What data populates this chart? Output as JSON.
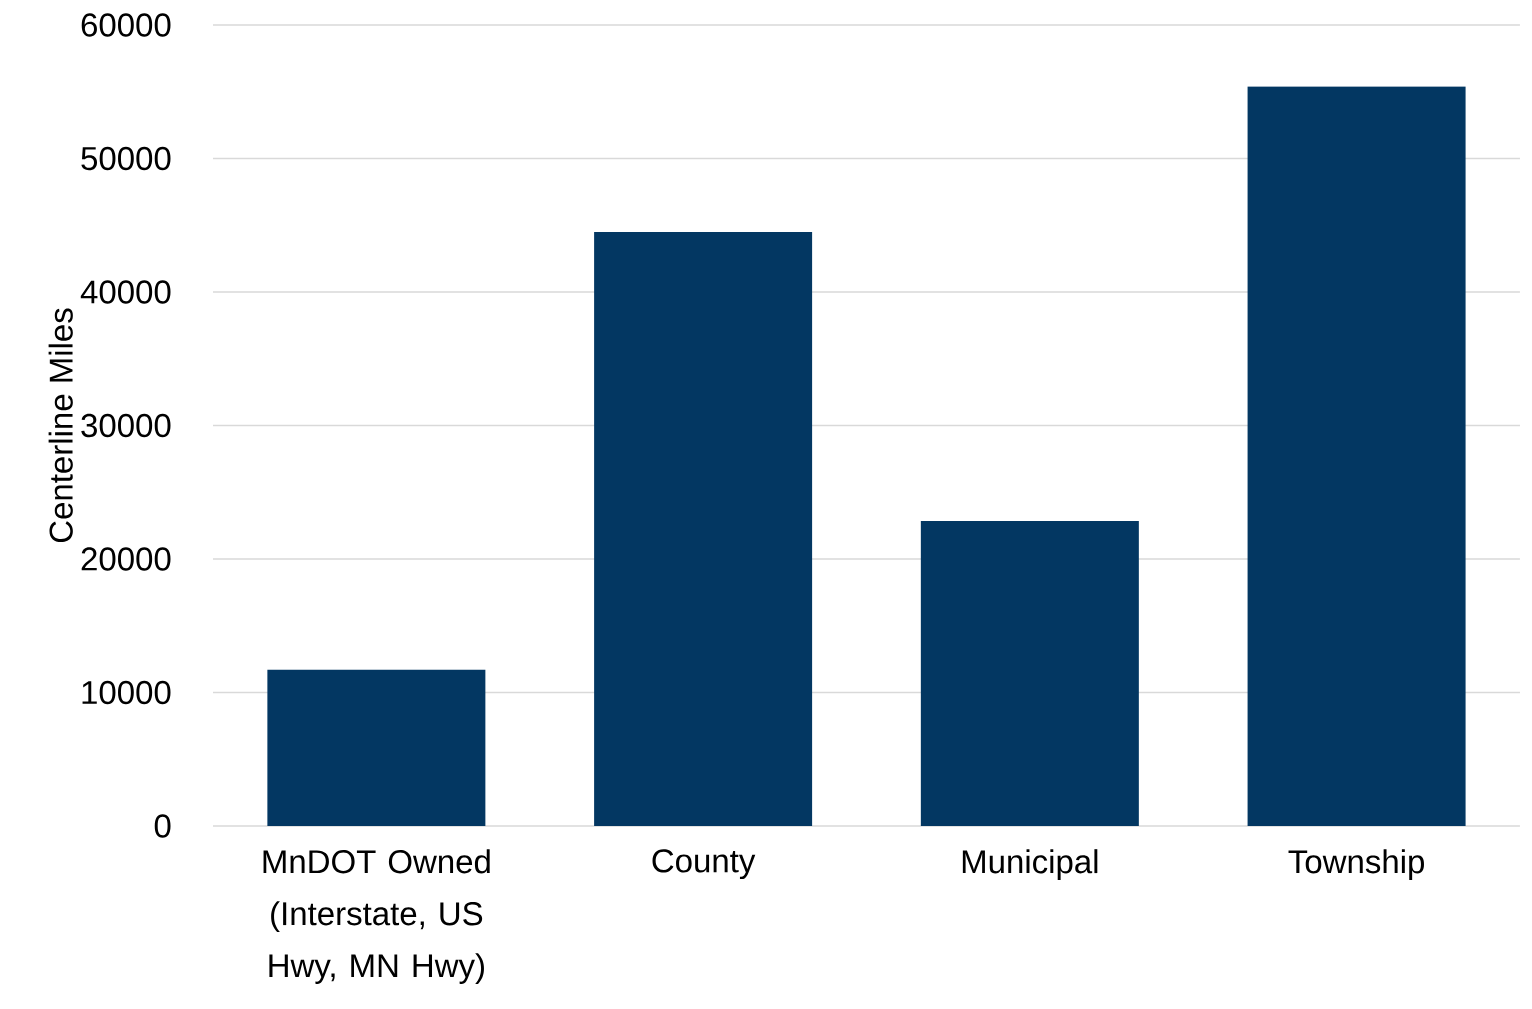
{
  "chart_data": {
    "type": "bar",
    "ylabel": "Centerline Miles",
    "categories": [
      "MnDOT Owned (Interstate, US Hwy, MN Hwy)",
      "County",
      "Municipal",
      "Township"
    ],
    "values": [
      11700,
      44500,
      22850,
      55400
    ],
    "color": "#033762",
    "ylim": [
      0,
      60000
    ],
    "yticks": [
      0,
      10000,
      20000,
      30000,
      40000,
      50000,
      60000
    ],
    "grid": "y"
  }
}
